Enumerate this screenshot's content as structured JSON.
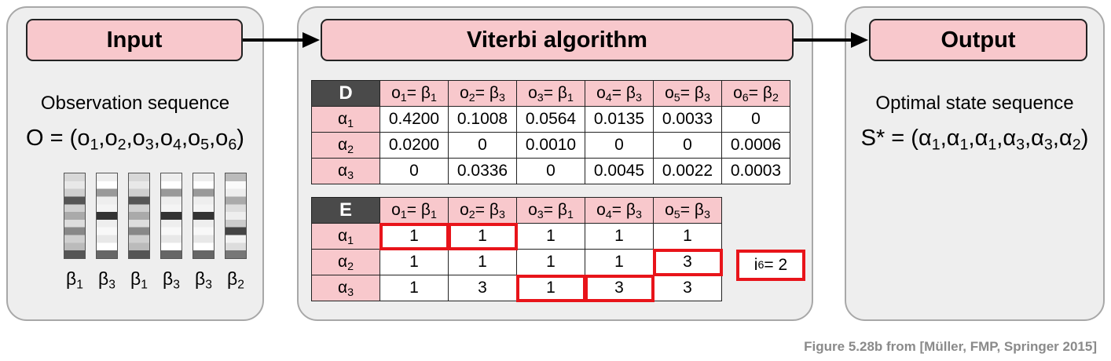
{
  "input": {
    "header": "Input",
    "label": "Observation sequence",
    "equation": {
      "lhs": "O = (",
      "items": [
        "o",
        "o",
        "o",
        "o",
        "o",
        "o"
      ],
      "subs": [
        "1",
        "2",
        "3",
        "4",
        "5",
        "6"
      ],
      "rhs": ")"
    },
    "symbols": [
      "β",
      "β",
      "β",
      "β",
      "β",
      "β"
    ],
    "symbol_subs": [
      "1",
      "3",
      "1",
      "3",
      "3",
      "2"
    ]
  },
  "algorithm": {
    "header": "Viterbi algorithm",
    "D": {
      "corner": "D",
      "columns": [
        [
          "o",
          "1",
          "β",
          "1"
        ],
        [
          "o",
          "2",
          "β",
          "3"
        ],
        [
          "o",
          "3",
          "β",
          "1"
        ],
        [
          "o",
          "4",
          "β",
          "3"
        ],
        [
          "o",
          "5",
          "β",
          "3"
        ],
        [
          "o",
          "6",
          "β",
          "2"
        ]
      ],
      "rows": [
        {
          "state": [
            "α",
            "1"
          ],
          "values": [
            "0.4200",
            "0.1008",
            "0.0564",
            "0.0135",
            "0.0033",
            "0"
          ]
        },
        {
          "state": [
            "α",
            "2"
          ],
          "values": [
            "0.0200",
            "0",
            "0.0010",
            "0",
            "0",
            "0.0006"
          ]
        },
        {
          "state": [
            "α",
            "3"
          ],
          "values": [
            "0",
            "0.0336",
            "0",
            "0.0045",
            "0.0022",
            "0.0003"
          ]
        }
      ]
    },
    "E": {
      "corner": "E",
      "columns": [
        [
          "o",
          "1",
          "β",
          "1"
        ],
        [
          "o",
          "2",
          "β",
          "3"
        ],
        [
          "o",
          "3",
          "β",
          "1"
        ],
        [
          "o",
          "4",
          "β",
          "3"
        ],
        [
          "o",
          "5",
          "β",
          "3"
        ]
      ],
      "rows": [
        {
          "state": [
            "α",
            "1"
          ],
          "values": [
            "1",
            "1",
            "1",
            "1",
            "1"
          ],
          "highlight": [
            true,
            true,
            false,
            false,
            false
          ]
        },
        {
          "state": [
            "α",
            "2"
          ],
          "values": [
            "1",
            "1",
            "1",
            "1",
            "3"
          ],
          "highlight": [
            false,
            false,
            false,
            false,
            true
          ]
        },
        {
          "state": [
            "α",
            "3"
          ],
          "values": [
            "1",
            "3",
            "1",
            "3",
            "3"
          ],
          "highlight": [
            false,
            false,
            true,
            true,
            false
          ]
        }
      ]
    },
    "final_index": {
      "symbol": "i",
      "sub": "6",
      "value": " = 2"
    },
    "highlight_color": "#e8141a"
  },
  "output": {
    "header": "Output",
    "label": "Optimal state sequence",
    "equation": {
      "lhs": "S* = (",
      "items": [
        "α",
        "α",
        "α",
        "α",
        "α",
        "α"
      ],
      "subs": [
        "1",
        "1",
        "1",
        "3",
        "3",
        "2"
      ],
      "rhs": ")"
    }
  },
  "caption": "Figure 5.28b from [Müller, FMP, Springer 2015]",
  "colors": {
    "header_fill": "#f8c8cc",
    "panel_fill": "#eeeeee",
    "corner_fill": "#4a4a4a"
  }
}
